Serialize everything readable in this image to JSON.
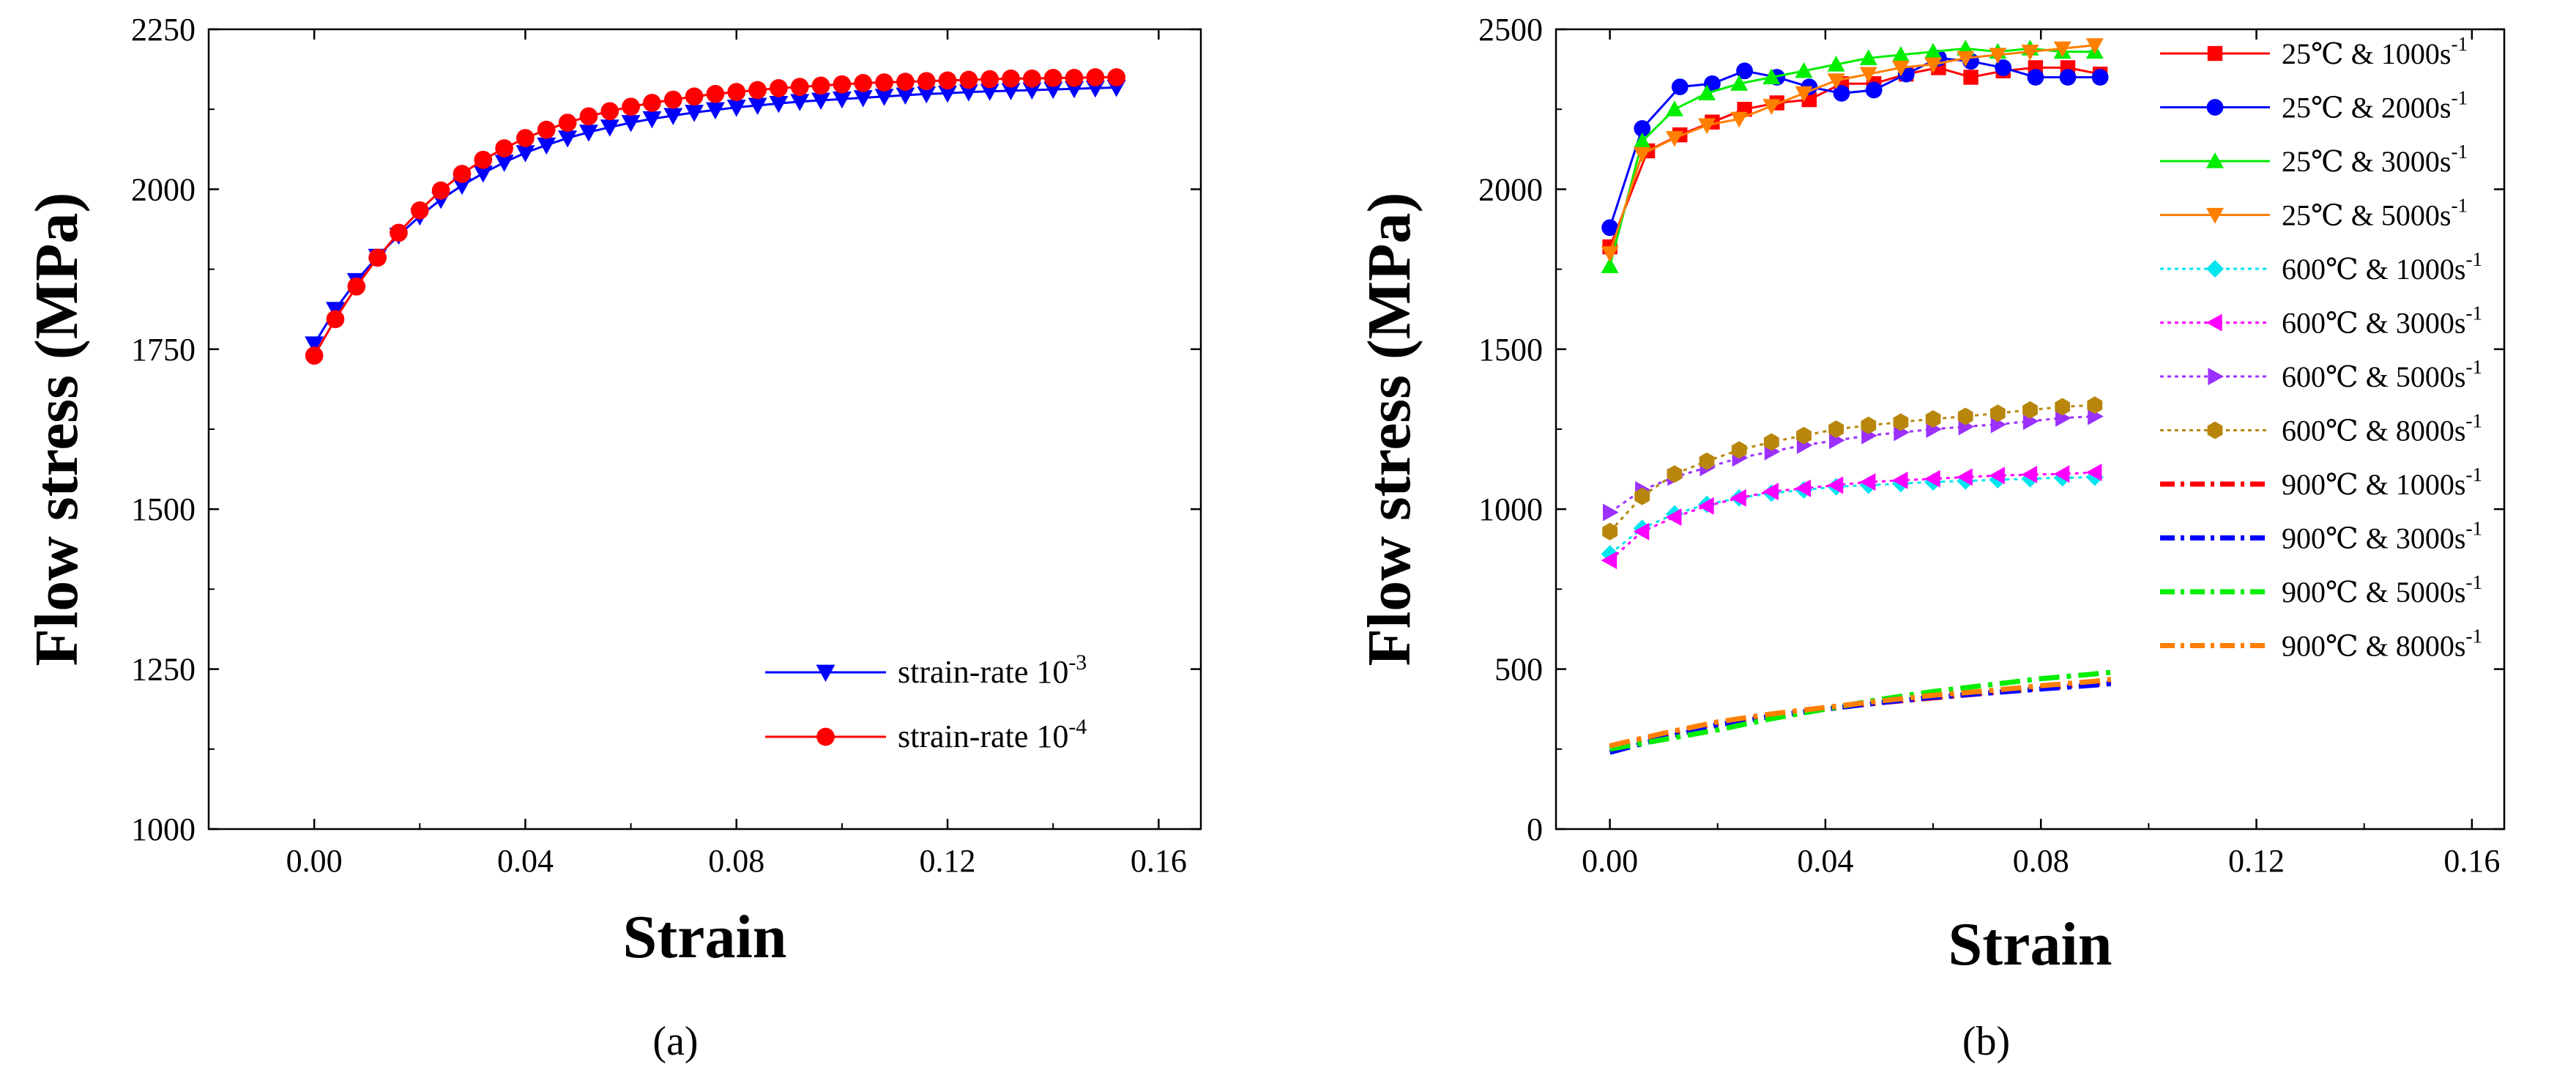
{
  "chart_data": [
    {
      "type": "line",
      "panel_label": "(a)",
      "xlabel": "Strain",
      "ylabel": "Flow stress (MPa)",
      "xlim": [
        -0.02,
        0.168
      ],
      "ylim": [
        1000,
        2250
      ],
      "xticks": [
        0.0,
        0.04,
        0.08,
        0.12,
        0.16
      ],
      "xtick_labels": [
        "0.00",
        "0.04",
        "0.08",
        "0.12",
        "0.16"
      ],
      "yticks": [
        1000,
        1250,
        1500,
        1750,
        2000,
        2250
      ],
      "ytick_labels": [
        "1000",
        "1250",
        "1500",
        "1750",
        "2000",
        "2250"
      ],
      "legend_position": "bottom-right",
      "series": [
        {
          "name": "strain-rate 10",
          "exponent": "-3",
          "color": "#0000ff",
          "marker": "triangle-down",
          "linestyle": "solid",
          "marker_every": 1,
          "x": [
            0.0,
            0.004,
            0.008,
            0.012,
            0.016,
            0.02,
            0.024,
            0.028,
            0.032,
            0.036,
            0.04,
            0.044,
            0.048,
            0.052,
            0.056,
            0.06,
            0.064,
            0.068,
            0.072,
            0.076,
            0.08,
            0.084,
            0.088,
            0.092,
            0.096,
            0.1,
            0.104,
            0.108,
            0.112,
            0.116,
            0.12,
            0.124,
            0.128,
            0.132,
            0.136,
            0.14,
            0.144,
            0.148,
            0.152
          ],
          "y": [
            1758,
            1812,
            1857,
            1895,
            1928,
            1958,
            1984,
            2006,
            2025,
            2042,
            2057,
            2069,
            2080,
            2089,
            2097,
            2104,
            2110,
            2115,
            2120,
            2124,
            2128,
            2131,
            2134,
            2137,
            2139,
            2141,
            2143,
            2145,
            2147,
            2149,
            2150,
            2152,
            2153,
            2154,
            2155,
            2156,
            2157,
            2158,
            2159
          ]
        },
        {
          "name": "strain-rate 10",
          "exponent": "-4",
          "color": "#ff0000",
          "marker": "circle",
          "linestyle": "solid",
          "marker_every": 1,
          "x": [
            0.0,
            0.004,
            0.008,
            0.012,
            0.016,
            0.02,
            0.024,
            0.028,
            0.032,
            0.036,
            0.04,
            0.044,
            0.048,
            0.052,
            0.056,
            0.06,
            0.064,
            0.068,
            0.072,
            0.076,
            0.08,
            0.084,
            0.088,
            0.092,
            0.096,
            0.1,
            0.104,
            0.108,
            0.112,
            0.116,
            0.12,
            0.124,
            0.128,
            0.132,
            0.136,
            0.14,
            0.144,
            0.148,
            0.152
          ],
          "y": [
            1740,
            1797,
            1848,
            1893,
            1932,
            1967,
            1998,
            2024,
            2046,
            2064,
            2080,
            2093,
            2104,
            2114,
            2122,
            2129,
            2135,
            2140,
            2145,
            2149,
            2152,
            2155,
            2158,
            2160,
            2162,
            2164,
            2166,
            2167,
            2168,
            2169,
            2170,
            2171,
            2172,
            2173,
            2173,
            2174,
            2174,
            2175,
            2175
          ]
        }
      ]
    },
    {
      "type": "line",
      "panel_label": "(b)",
      "xlabel": "Strain",
      "ylabel": "Flow stress (MPa)",
      "xlim": [
        -0.01,
        0.166
      ],
      "ylim": [
        0,
        2500
      ],
      "xticks": [
        0.0,
        0.04,
        0.08,
        0.12,
        0.16
      ],
      "xtick_labels": [
        "0.00",
        "0.04",
        "0.08",
        "0.12",
        "0.16"
      ],
      "yticks": [
        0,
        500,
        1000,
        1500,
        2000,
        2500
      ],
      "ytick_labels": [
        "0",
        "500",
        "1000",
        "1500",
        "2000",
        "2500"
      ],
      "legend_position": "right-outside",
      "series": [
        {
          "name": "25℃ & 1000s",
          "exponent": "-1",
          "color": "#ff0000",
          "marker": "square",
          "linestyle": "solid",
          "marker_every": 1,
          "x": [
            0.0,
            0.007,
            0.013,
            0.019,
            0.025,
            0.031,
            0.037,
            0.043,
            0.049,
            0.055,
            0.061,
            0.067,
            0.073,
            0.079,
            0.085,
            0.091
          ],
          "y": [
            1820,
            2120,
            2170,
            2210,
            2250,
            2270,
            2280,
            2330,
            2330,
            2360,
            2380,
            2350,
            2370,
            2380,
            2380,
            2360
          ]
        },
        {
          "name": "25℃ & 2000s",
          "exponent": "-1",
          "color": "#0000ff",
          "marker": "circle",
          "linestyle": "solid",
          "marker_every": 1,
          "x": [
            0.0,
            0.006,
            0.013,
            0.019,
            0.025,
            0.031,
            0.037,
            0.043,
            0.049,
            0.055,
            0.061,
            0.067,
            0.073,
            0.079,
            0.085,
            0.091
          ],
          "y": [
            1880,
            2190,
            2320,
            2330,
            2370,
            2350,
            2320,
            2300,
            2310,
            2360,
            2410,
            2400,
            2380,
            2350,
            2350,
            2350
          ]
        },
        {
          "name": "25℃ & 3000s",
          "exponent": "-1",
          "color": "#00ee00",
          "marker": "triangle-up",
          "linestyle": "solid",
          "marker_every": 1,
          "x": [
            0.0,
            0.006,
            0.012,
            0.018,
            0.024,
            0.03,
            0.036,
            0.042,
            0.048,
            0.054,
            0.06,
            0.066,
            0.072,
            0.078,
            0.084,
            0.09
          ],
          "y": [
            1760,
            2150,
            2250,
            2300,
            2330,
            2350,
            2370,
            2390,
            2410,
            2420,
            2430,
            2440,
            2430,
            2440,
            2430,
            2430
          ]
        },
        {
          "name": "25℃ & 5000s",
          "exponent": "-1",
          "color": "#ff7f00",
          "marker": "triangle-down",
          "linestyle": "solid",
          "marker_every": 1,
          "x": [
            0.0,
            0.006,
            0.012,
            0.018,
            0.024,
            0.03,
            0.036,
            0.042,
            0.048,
            0.054,
            0.06,
            0.066,
            0.072,
            0.078,
            0.084,
            0.09
          ],
          "y": [
            1800,
            2110,
            2160,
            2200,
            2220,
            2260,
            2300,
            2340,
            2360,
            2380,
            2390,
            2410,
            2420,
            2430,
            2440,
            2450
          ]
        },
        {
          "name": "600℃ & 1000s",
          "exponent": "-1",
          "color": "#00e5ee",
          "marker": "diamond",
          "linestyle": "dotted",
          "marker_every": 1,
          "x": [
            0.0,
            0.006,
            0.012,
            0.018,
            0.024,
            0.03,
            0.036,
            0.042,
            0.048,
            0.054,
            0.06,
            0.066,
            0.072,
            0.078,
            0.084,
            0.09
          ],
          "y": [
            860,
            940,
            985,
            1015,
            1035,
            1050,
            1060,
            1070,
            1075,
            1080,
            1085,
            1088,
            1092,
            1095,
            1098,
            1100
          ]
        },
        {
          "name": "600℃ & 3000s",
          "exponent": "-1",
          "color": "#ff00ff",
          "marker": "triangle-left",
          "linestyle": "dotted",
          "marker_every": 1,
          "x": [
            0.0,
            0.006,
            0.012,
            0.018,
            0.024,
            0.03,
            0.036,
            0.042,
            0.048,
            0.054,
            0.06,
            0.066,
            0.072,
            0.078,
            0.084,
            0.09
          ],
          "y": [
            840,
            930,
            975,
            1010,
            1035,
            1055,
            1065,
            1075,
            1085,
            1090,
            1095,
            1100,
            1105,
            1108,
            1110,
            1115
          ]
        },
        {
          "name": "600℃ & 5000s",
          "exponent": "-1",
          "color": "#9b30ff",
          "marker": "triangle-right",
          "linestyle": "dotted",
          "marker_every": 1,
          "x": [
            0.0,
            0.006,
            0.012,
            0.018,
            0.024,
            0.03,
            0.036,
            0.042,
            0.048,
            0.054,
            0.06,
            0.066,
            0.072,
            0.078,
            0.084,
            0.09
          ],
          "y": [
            990,
            1060,
            1100,
            1130,
            1160,
            1180,
            1200,
            1215,
            1230,
            1240,
            1250,
            1258,
            1265,
            1275,
            1285,
            1290
          ]
        },
        {
          "name": "600℃ & 8000s",
          "exponent": "-1",
          "color": "#b8860b",
          "marker": "hexagon",
          "linestyle": "dotted",
          "marker_every": 1,
          "x": [
            0.0,
            0.006,
            0.012,
            0.018,
            0.024,
            0.03,
            0.036,
            0.042,
            0.048,
            0.054,
            0.06,
            0.066,
            0.072,
            0.078,
            0.084,
            0.09
          ],
          "y": [
            930,
            1040,
            1110,
            1150,
            1185,
            1210,
            1230,
            1250,
            1262,
            1272,
            1282,
            1290,
            1300,
            1310,
            1320,
            1325
          ]
        },
        {
          "name": "900℃ & 1000s",
          "exponent": "-1",
          "color": "#ff0000",
          "marker": "none",
          "linestyle": "dashdot",
          "marker_every": 0,
          "x": [
            0.0,
            0.01,
            0.02,
            0.03,
            0.04,
            0.05,
            0.06,
            0.07,
            0.08,
            0.09,
            0.093
          ],
          "y": [
            255,
            295,
            330,
            355,
            375,
            395,
            410,
            425,
            440,
            455,
            460
          ]
        },
        {
          "name": "900℃ & 3000s",
          "exponent": "-1",
          "color": "#0000ff",
          "marker": "none",
          "linestyle": "dashdot",
          "marker_every": 0,
          "x": [
            0.0,
            0.01,
            0.02,
            0.03,
            0.04,
            0.05,
            0.06,
            0.07,
            0.08,
            0.09,
            0.093
          ],
          "y": [
            240,
            285,
            325,
            352,
            375,
            395,
            412,
            425,
            438,
            450,
            455
          ]
        },
        {
          "name": "900℃ & 5000s",
          "exponent": "-1",
          "color": "#00ee00",
          "marker": "none",
          "linestyle": "dashdot",
          "marker_every": 0,
          "x": [
            0.0,
            0.01,
            0.02,
            0.03,
            0.04,
            0.05,
            0.06,
            0.07,
            0.08,
            0.09,
            0.093
          ],
          "y": [
            250,
            280,
            310,
            345,
            375,
            405,
            430,
            450,
            470,
            485,
            490
          ]
        },
        {
          "name": "900℃ & 8000s",
          "exponent": "-1",
          "color": "#ff7f00",
          "marker": "none",
          "linestyle": "dashdot",
          "marker_every": 0,
          "x": [
            0.0,
            0.01,
            0.02,
            0.03,
            0.04,
            0.05,
            0.06,
            0.07,
            0.08,
            0.09,
            0.093
          ],
          "y": [
            260,
            300,
            335,
            360,
            380,
            400,
            418,
            432,
            448,
            462,
            468
          ]
        }
      ]
    }
  ]
}
